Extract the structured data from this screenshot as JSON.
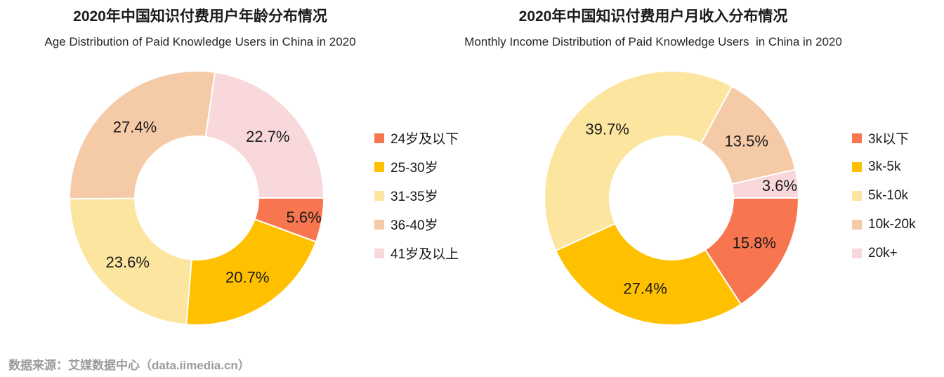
{
  "chart_data": [
    {
      "type": "pie",
      "donut": true,
      "title": "2020年中国知识付费用户年龄分布情况",
      "subtitle": "Age Distribution of Paid Knowledge Users in China in 2020",
      "categories": [
        "24岁及以下",
        "25-30岁",
        "31-35岁",
        "36-40岁",
        "41岁及以上"
      ],
      "values": [
        5.6,
        20.7,
        23.6,
        27.4,
        22.7
      ],
      "unit": "%",
      "colors": [
        "#F8764F",
        "#FFC000",
        "#FCE59F",
        "#F5CAA6",
        "#F9D8DC"
      ],
      "start_angle_deg_from_north": 90,
      "clockwise": true,
      "label_style": "percent-inside",
      "legend_position": "right"
    },
    {
      "type": "pie",
      "donut": true,
      "title": "2020年中国知识付费用户月收入分布情况",
      "subtitle": "Monthly Income Distribution of Paid Knowledge Users  in China in 2020",
      "categories": [
        "3k以下",
        "3k-5k",
        "5k-10k",
        "10k-20k",
        "20k+"
      ],
      "values": [
        15.8,
        27.4,
        39.7,
        13.5,
        3.6
      ],
      "unit": "%",
      "colors": [
        "#F8764F",
        "#FFC000",
        "#FCE59F",
        "#F5CAA6",
        "#F9D8DC"
      ],
      "start_angle_deg_from_north": 90,
      "clockwise": true,
      "label_style": "percent-inside",
      "legend_position": "right"
    }
  ],
  "footer": {
    "source_text": "数据来源：艾媒数据中心（data.iimedia.cn）"
  }
}
